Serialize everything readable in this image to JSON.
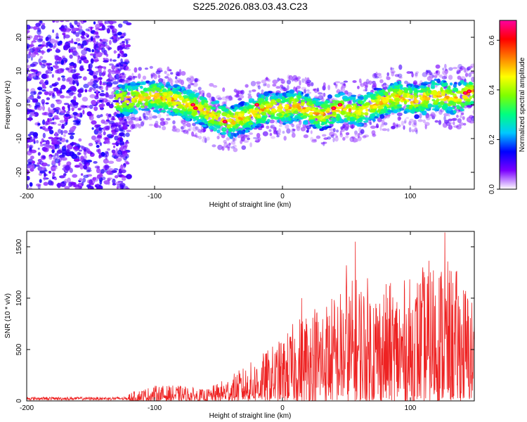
{
  "title": "S225.2026.083.03.43.C23",
  "chart_data": [
    {
      "type": "heatmap",
      "name": "spectrogram",
      "xlabel": "Height of straight line (km)",
      "ylabel": "Frequency (Hz)",
      "xlim": [
        -200,
        150
      ],
      "ylim": [
        -25,
        25
      ],
      "xticks": [
        -200,
        -100,
        0,
        100
      ],
      "xtick_labels": [
        "-200",
        "-100",
        "0",
        "100"
      ],
      "yticks": [
        -20,
        -10,
        0,
        10,
        20
      ],
      "ytick_labels": [
        "-20",
        "-10",
        "0",
        "10",
        "20"
      ],
      "colorbar": {
        "label": "Normalized spectral amplitude",
        "range": [
          0.0,
          0.68
        ],
        "ticks": [
          0.0,
          0.2,
          0.4,
          0.6
        ],
        "tick_labels": [
          "0.0",
          "0.2",
          "0.4",
          "0.6"
        ],
        "colormap": [
          "#ffffff",
          "#7a00ff",
          "#0000ff",
          "#00c8ff",
          "#00ff80",
          "#7fff00",
          "#ffff00",
          "#ff8000",
          "#ff0000",
          "#ff00a0"
        ]
      },
      "ridge": {
        "description_free": true,
        "height_km": [
          -130,
          -115,
          -100,
          -85,
          -70,
          -55,
          -40,
          -25,
          -10,
          0,
          10,
          20,
          30,
          45,
          60,
          75,
          90,
          105,
          120,
          135,
          150
        ],
        "frequency_hz": [
          1.0,
          2.0,
          2.5,
          1.5,
          -0.5,
          -3.0,
          -5.0,
          -3.0,
          -0.5,
          -1.5,
          0.0,
          -1.5,
          -3.0,
          -1.0,
          -2.0,
          0.5,
          2.5,
          1.0,
          3.0,
          2.0,
          4.0
        ]
      }
    },
    {
      "type": "line",
      "name": "snr",
      "xlabel": "Height of straight line (km)",
      "ylabel": "SNR (10 * v/v)",
      "xlim": [
        -200,
        150
      ],
      "ylim": [
        0,
        1650
      ],
      "xticks": [
        -200,
        -100,
        0,
        100
      ],
      "xtick_labels": [
        "-200",
        "-100",
        "0",
        "100"
      ],
      "yticks": [
        0,
        500,
        1000,
        1500
      ],
      "ytick_labels": [
        "0",
        "500",
        "1000",
        "1500"
      ],
      "color": "#ee2222",
      "envelope": {
        "height_km": [
          -200,
          -150,
          -120,
          -100,
          -80,
          -60,
          -40,
          -20,
          0,
          20,
          40,
          60,
          80,
          100,
          120,
          140,
          150
        ],
        "snr_max": [
          40,
          40,
          80,
          150,
          150,
          110,
          250,
          420,
          620,
          950,
          1050,
          1250,
          1150,
          1200,
          1450,
          1250,
          1000
        ]
      },
      "peaks": [
        {
          "x": 57,
          "y": 1550
        },
        {
          "x": 127,
          "y": 1640
        },
        {
          "x": 50,
          "y": 1320
        },
        {
          "x": 15,
          "y": 1000
        }
      ]
    }
  ]
}
